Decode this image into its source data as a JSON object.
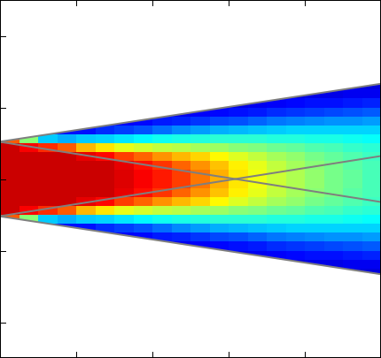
{
  "chart_data": {
    "type": "heatmap",
    "x": [
      0.125,
      0.375,
      0.625,
      0.875,
      1.125,
      1.375,
      1.625,
      1.875,
      2.125,
      2.375,
      2.625,
      2.875,
      3.125,
      3.375,
      3.625,
      3.875,
      4.125,
      4.375,
      4.625,
      4.875
    ],
    "y": [
      1.4375,
      1.3125,
      1.1875,
      1.0625,
      0.9375,
      0.8125,
      0.6875,
      0.5625,
      0.4375,
      0.3125,
      0.1875,
      0.0625,
      -0.0625,
      -0.1875,
      -0.3125,
      -0.4375,
      -0.5625,
      -0.6875,
      -0.8125,
      -0.9375,
      -1.0625,
      -1.1875,
      -1.3125,
      -1.4375
    ],
    "z": [
      [
        null,
        null,
        null,
        null,
        null,
        null,
        null,
        null,
        null,
        null,
        null,
        null,
        null,
        null,
        null,
        null,
        null,
        null,
        null,
        null
      ],
      [
        null,
        null,
        null,
        null,
        null,
        null,
        null,
        null,
        null,
        null,
        null,
        null,
        null,
        null,
        null,
        null,
        null,
        null,
        0.1,
        0.1
      ],
      [
        null,
        null,
        null,
        null,
        null,
        null,
        null,
        null,
        null,
        null,
        null,
        null,
        null,
        null,
        0.1,
        0.1,
        0.11,
        0.11,
        0.12,
        0.12
      ],
      [
        null,
        null,
        null,
        null,
        null,
        null,
        null,
        null,
        null,
        null,
        null,
        0.11,
        0.11,
        0.12,
        0.13,
        0.14,
        0.15,
        0.15,
        0.16,
        0.17
      ],
      [
        null,
        null,
        null,
        null,
        null,
        null,
        null,
        null,
        0.12,
        0.12,
        0.13,
        0.14,
        0.15,
        0.16,
        0.18,
        0.19,
        0.2,
        0.21,
        0.22,
        0.23
      ],
      [
        null,
        null,
        null,
        null,
        null,
        0.12,
        0.13,
        0.14,
        0.16,
        0.17,
        0.19,
        0.21,
        0.22,
        0.24,
        0.26,
        0.27,
        0.28,
        0.29,
        0.29,
        0.3
      ],
      [
        null,
        null,
        0.15,
        0.15,
        0.15,
        0.18,
        0.2,
        0.22,
        0.25,
        0.28,
        0.3,
        0.32,
        0.33,
        0.34,
        0.35,
        0.36,
        0.36,
        0.36,
        0.36,
        0.36
      ],
      [
        0.85,
        0.55,
        0.35,
        0.32,
        0.35,
        0.36,
        0.38,
        0.4,
        0.42,
        0.43,
        0.44,
        0.45,
        0.45,
        0.45,
        0.44,
        0.44,
        0.43,
        0.43,
        0.42,
        0.41
      ],
      [
        1,
        0.95,
        0.9,
        0.85,
        0.75,
        0.7,
        0.65,
        0.63,
        0.61,
        0.6,
        0.58,
        0.57,
        0.55,
        0.54,
        0.52,
        0.51,
        0.49,
        0.48,
        0.46,
        0.45
      ],
      [
        1,
        1,
        1,
        1,
        0.97,
        0.94,
        0.88,
        0.84,
        0.79,
        0.75,
        0.72,
        0.68,
        0.64,
        0.61,
        0.58,
        0.56,
        0.53,
        0.51,
        0.49,
        0.47
      ],
      [
        1,
        1,
        1,
        1,
        1,
        1,
        0.97,
        0.93,
        0.89,
        0.84,
        0.79,
        0.74,
        0.69,
        0.65,
        0.61,
        0.58,
        0.55,
        0.53,
        0.5,
        0.48
      ],
      [
        1,
        1,
        1,
        1,
        1,
        1,
        0.98,
        0.95,
        0.92,
        0.88,
        0.82,
        0.76,
        0.7,
        0.66,
        0.62,
        0.59,
        0.56,
        0.53,
        0.51,
        0.48
      ],
      [
        1,
        1,
        1,
        1,
        1,
        1,
        0.98,
        0.95,
        0.92,
        0.88,
        0.82,
        0.76,
        0.7,
        0.66,
        0.62,
        0.59,
        0.56,
        0.53,
        0.51,
        0.48
      ],
      [
        1,
        1,
        1,
        1,
        1,
        1,
        0.97,
        0.93,
        0.89,
        0.84,
        0.79,
        0.74,
        0.69,
        0.65,
        0.61,
        0.58,
        0.55,
        0.53,
        0.5,
        0.48
      ],
      [
        1,
        1,
        1,
        1,
        0.97,
        0.94,
        0.88,
        0.84,
        0.79,
        0.75,
        0.72,
        0.68,
        0.64,
        0.61,
        0.58,
        0.56,
        0.53,
        0.51,
        0.49,
        0.47
      ],
      [
        1,
        0.95,
        0.9,
        0.85,
        0.75,
        0.7,
        0.65,
        0.63,
        0.61,
        0.6,
        0.58,
        0.57,
        0.55,
        0.54,
        0.52,
        0.51,
        0.49,
        0.48,
        0.46,
        0.45
      ],
      [
        0.85,
        0.55,
        0.35,
        0.32,
        0.35,
        0.36,
        0.38,
        0.4,
        0.42,
        0.43,
        0.44,
        0.45,
        0.45,
        0.45,
        0.44,
        0.44,
        0.43,
        0.43,
        0.42,
        0.41
      ],
      [
        null,
        null,
        0.15,
        0.15,
        0.15,
        0.18,
        0.2,
        0.22,
        0.25,
        0.28,
        0.3,
        0.32,
        0.33,
        0.34,
        0.35,
        0.36,
        0.36,
        0.36,
        0.36,
        0.36
      ],
      [
        null,
        null,
        null,
        null,
        null,
        0.12,
        0.13,
        0.14,
        0.16,
        0.17,
        0.19,
        0.21,
        0.22,
        0.24,
        0.26,
        0.27,
        0.28,
        0.29,
        0.29,
        0.3
      ],
      [
        null,
        null,
        null,
        null,
        null,
        null,
        null,
        null,
        0.12,
        0.12,
        0.13,
        0.14,
        0.15,
        0.16,
        0.18,
        0.19,
        0.2,
        0.21,
        0.22,
        0.23
      ],
      [
        null,
        null,
        null,
        null,
        null,
        null,
        null,
        null,
        null,
        null,
        null,
        0.11,
        0.11,
        0.12,
        0.13,
        0.14,
        0.15,
        0.15,
        0.16,
        0.17
      ],
      [
        null,
        null,
        null,
        null,
        null,
        null,
        null,
        null,
        null,
        null,
        null,
        null,
        null,
        null,
        0.1,
        0.1,
        0.11,
        0.11,
        0.12,
        0.12
      ],
      [
        null,
        null,
        null,
        null,
        null,
        null,
        null,
        null,
        null,
        null,
        null,
        null,
        null,
        null,
        null,
        null,
        null,
        null,
        0.1,
        0.1
      ],
      [
        null,
        null,
        null,
        null,
        null,
        null,
        null,
        null,
        null,
        null,
        null,
        null,
        null,
        null,
        null,
        null,
        null,
        null,
        null,
        null
      ]
    ],
    "zlim": [
      0,
      1.08
    ],
    "xlim": [
      0,
      5
    ],
    "ylim": [
      -2.5,
      2.5
    ],
    "xticks": [
      1,
      2,
      3,
      4
    ],
    "yticks": [
      -2,
      -1,
      0,
      1,
      2
    ],
    "tick_labels": false,
    "series": [
      {
        "type": "line",
        "color": "#7f7f7f",
        "x": [
          0,
          5
        ],
        "values": [
          0.52,
          1.33
        ]
      },
      {
        "type": "line",
        "color": "#7f7f7f",
        "x": [
          0,
          5
        ],
        "values": [
          -0.52,
          -1.33
        ]
      },
      {
        "type": "line",
        "color": "#7f7f7f",
        "x": [
          0,
          5
        ],
        "values": [
          0.52,
          -0.32
        ]
      },
      {
        "type": "line",
        "color": "#7f7f7f",
        "x": [
          0,
          5
        ],
        "values": [
          -0.52,
          0.32
        ]
      }
    ]
  }
}
